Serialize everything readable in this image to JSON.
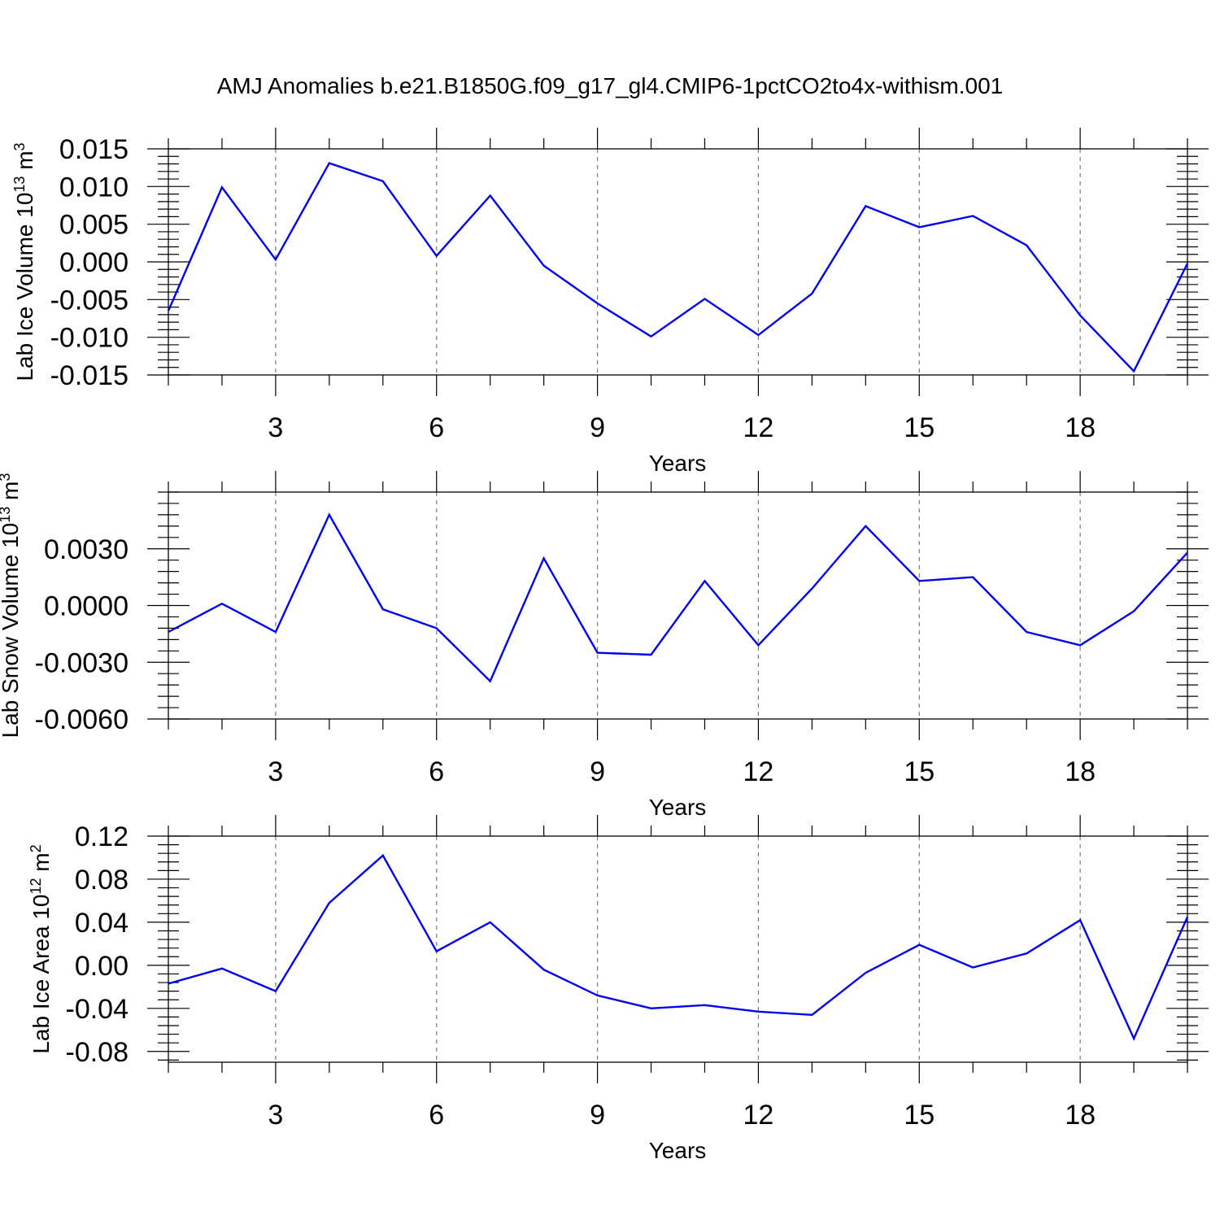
{
  "title": "AMJ Anomalies b.e21.B1850G.f09_g17_gl4.CMIP6-1pctCO2to4x-withism.001",
  "colors": {
    "line": "#0000ee",
    "grid": "#7a7a7a",
    "frame": "#000000"
  },
  "chart_data": [
    {
      "type": "line",
      "ylabel": {
        "text": "Lab Ice Volume 10",
        "sup": "13",
        "unit": " m",
        "unit_sup": "3"
      },
      "xlabel": "Years",
      "xlim": [
        1,
        20
      ],
      "ylim": [
        -0.015,
        0.015
      ],
      "xticks": [
        3,
        6,
        9,
        12,
        15,
        18
      ],
      "xtick_labels": [
        "3",
        "6",
        "9",
        "12",
        "15",
        "18"
      ],
      "yticks": [
        -0.015,
        -0.01,
        -0.005,
        0.0,
        0.005,
        0.01,
        0.015
      ],
      "ytick_labels": [
        "-0.015",
        "-0.010",
        "-0.005",
        "0.000",
        "0.005",
        "0.010",
        "0.015"
      ],
      "grid": "vertical-dashed",
      "x": [
        1,
        2,
        3,
        4,
        5,
        6,
        7,
        8,
        9,
        10,
        11,
        12,
        13,
        14,
        15,
        16,
        17,
        18,
        19,
        20
      ],
      "values": [
        -0.0065,
        0.0099,
        0.0003,
        0.0131,
        0.0107,
        0.0008,
        0.0088,
        -0.0005,
        -0.0055,
        -0.0099,
        -0.0049,
        -0.0097,
        -0.0042,
        0.0074,
        0.0046,
        0.0061,
        0.0022,
        -0.0071,
        -0.0145,
        -0.0002
      ]
    },
    {
      "type": "line",
      "ylabel": {
        "text": "Lab Snow Volume 10",
        "sup": "13",
        "unit": " m",
        "unit_sup": "3"
      },
      "xlabel": "Years",
      "xlim": [
        1,
        20
      ],
      "ylim": [
        -0.006,
        0.006
      ],
      "xticks": [
        3,
        6,
        9,
        12,
        15,
        18
      ],
      "xtick_labels": [
        "3",
        "6",
        "9",
        "12",
        "15",
        "18"
      ],
      "yticks": [
        -0.006,
        -0.003,
        0.0,
        0.003
      ],
      "ytick_labels": [
        "-0.0060",
        "-0.0030",
        "0.0000",
        "0.0030"
      ],
      "grid": "vertical-dashed",
      "x": [
        1,
        2,
        3,
        4,
        5,
        6,
        7,
        8,
        9,
        10,
        11,
        12,
        13,
        14,
        15,
        16,
        17,
        18,
        19,
        20
      ],
      "values": [
        -0.0014,
        0.0001,
        -0.0014,
        0.0048,
        -0.0002,
        -0.0012,
        -0.004,
        0.0025,
        -0.0025,
        -0.0026,
        0.0013,
        -0.0021,
        0.0009,
        0.0042,
        0.0013,
        0.0015,
        -0.0014,
        -0.0021,
        -0.0003,
        0.0028
      ]
    },
    {
      "type": "line",
      "ylabel": {
        "text": "Lab Ice Area 10",
        "sup": "12",
        "unit": " m",
        "unit_sup": "2"
      },
      "xlabel": "Years",
      "xlim": [
        1,
        20
      ],
      "ylim": [
        -0.09,
        0.12
      ],
      "xticks": [
        3,
        6,
        9,
        12,
        15,
        18
      ],
      "xtick_labels": [
        "3",
        "6",
        "9",
        "12",
        "15",
        "18"
      ],
      "yticks": [
        -0.08,
        -0.04,
        0.0,
        0.04,
        0.08,
        0.12
      ],
      "ytick_labels": [
        "-0.08",
        "-0.04",
        "0.00",
        "0.04",
        "0.08",
        "0.12"
      ],
      "grid": "vertical-dashed",
      "x": [
        1,
        2,
        3,
        4,
        5,
        6,
        7,
        8,
        9,
        10,
        11,
        12,
        13,
        14,
        15,
        16,
        17,
        18,
        19,
        20
      ],
      "values": [
        -0.017,
        -0.003,
        -0.024,
        0.058,
        0.102,
        0.013,
        0.04,
        -0.004,
        -0.028,
        -0.04,
        -0.037,
        -0.043,
        -0.046,
        -0.007,
        0.019,
        -0.002,
        0.011,
        0.042,
        -0.068,
        0.045
      ]
    }
  ]
}
